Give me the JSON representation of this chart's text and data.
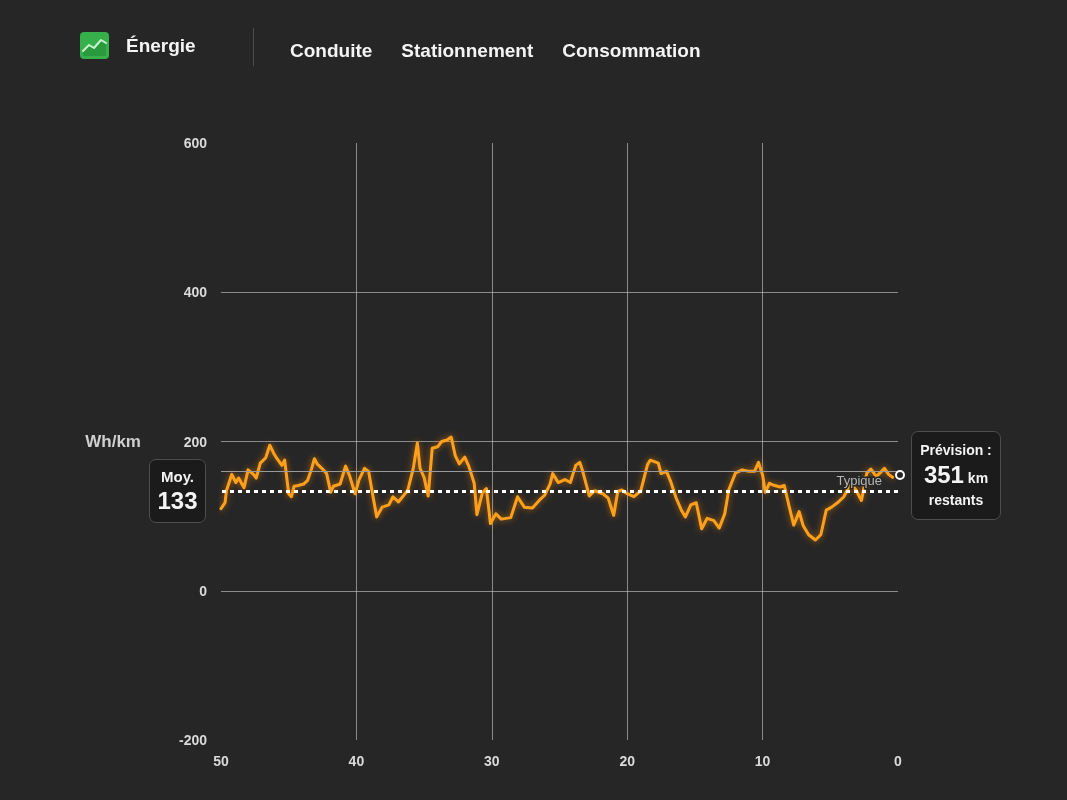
{
  "chart_data": {
    "type": "line",
    "title": "Énergie",
    "ylabel": "Wh/km",
    "annotations": [
      "Conduite",
      "Stationnement",
      "Consommation",
      {
        "text": "Prévision : 351 km restants",
        "x": 0,
        "y": 155
      }
    ],
    "xlim": [
      50,
      0
    ],
    "xticks": [
      50,
      40,
      30,
      20,
      10,
      0
    ],
    "ylim": [
      -200,
      600
    ],
    "yticks": [
      -200,
      0,
      200,
      400,
      600
    ],
    "grid": true,
    "marker": "none",
    "ref_lines": [
      {
        "axis": "y",
        "value": 133,
        "label": "Moy. 133",
        "color": "#ffffff",
        "line_style": "dotted"
      },
      {
        "axis": "y",
        "value": 160,
        "label": "Typique",
        "color": "#9a9a9a",
        "line_style": "solid"
      }
    ],
    "series": [
      {
        "color": "#ffa01c",
        "x": [
          50.0,
          49.7,
          49.6,
          49.2,
          48.9,
          48.7,
          48.3,
          48.0,
          47.6,
          47.4,
          47.1,
          46.7,
          46.4,
          46.1,
          45.9,
          45.5,
          45.3,
          45.0,
          44.8,
          44.6,
          44.3,
          43.9,
          43.6,
          43.3,
          43.1,
          42.9,
          42.5,
          42.2,
          41.9,
          41.7,
          41.2,
          40.8,
          40.5,
          40.1,
          39.8,
          39.4,
          39.1,
          38.8,
          38.5,
          38.1,
          37.6,
          37.3,
          36.9,
          36.5,
          36.2,
          35.8,
          35.5,
          35.3,
          35.0,
          34.7,
          34.4,
          34.0,
          33.7,
          33.3,
          33.0,
          32.7,
          32.4,
          32.0,
          31.7,
          31.3,
          31.1,
          30.7,
          30.4,
          30.1,
          29.7,
          29.3,
          28.6,
          28.1,
          27.6,
          27.0,
          26.5,
          26.1,
          25.7,
          25.5,
          25.1,
          24.6,
          24.2,
          23.8,
          23.5,
          23.3,
          22.8,
          22.4,
          21.8,
          21.4,
          21.0,
          20.7,
          20.4,
          20.0,
          19.5,
          19.0,
          18.5,
          18.3,
          17.7,
          17.5,
          17.1,
          16.8,
          16.4,
          16.0,
          15.7,
          15.3,
          14.9,
          14.5,
          14.1,
          13.6,
          13.2,
          12.8,
          12.5,
          12.0,
          11.5,
          11.0,
          10.6,
          10.3,
          10.0,
          9.8,
          9.5,
          9.1,
          8.7,
          8.4,
          8.0,
          7.7,
          7.3,
          7.0,
          6.6,
          6.1,
          5.7,
          5.3,
          4.9,
          4.4,
          4.0,
          3.5,
          3.1,
          2.7,
          2.3,
          2.0,
          1.6,
          1.0,
          0.7,
          0.4
        ],
        "values": [
          110,
          118,
          134,
          156,
          145,
          151,
          138,
          162,
          156,
          151,
          171,
          178,
          195,
          184,
          178,
          168,
          175,
          130,
          126,
          140,
          141,
          143,
          148,
          164,
          177,
          170,
          163,
          157,
          132,
          140,
          143,
          167,
          154,
          130,
          149,
          164,
          160,
          129,
          99,
          112,
          115,
          126,
          119,
          128,
          135,
          164,
          198,
          164,
          152,
          127,
          191,
          193,
          200,
          202,
          206,
          181,
          170,
          179,
          167,
          144,
          102,
          131,
          137,
          90,
          103,
          96,
          98,
          126,
          112,
          111,
          121,
          128,
          143,
          157,
          145,
          149,
          145,
          168,
          172,
          161,
          127,
          134,
          130,
          124,
          101,
          133,
          135,
          130,
          126,
          134,
          169,
          175,
          171,
          157,
          160,
          147,
          125,
          108,
          99,
          115,
          118,
          83,
          97,
          94,
          84,
          103,
          135,
          158,
          162,
          160,
          160,
          172,
          155,
          132,
          144,
          141,
          139,
          141,
          110,
          88,
          106,
          87,
          75,
          68,
          75,
          108,
          112,
          119,
          126,
          144,
          135,
          121,
          158,
          163,
          153,
          164,
          156,
          152
        ]
      }
    ]
  }
}
